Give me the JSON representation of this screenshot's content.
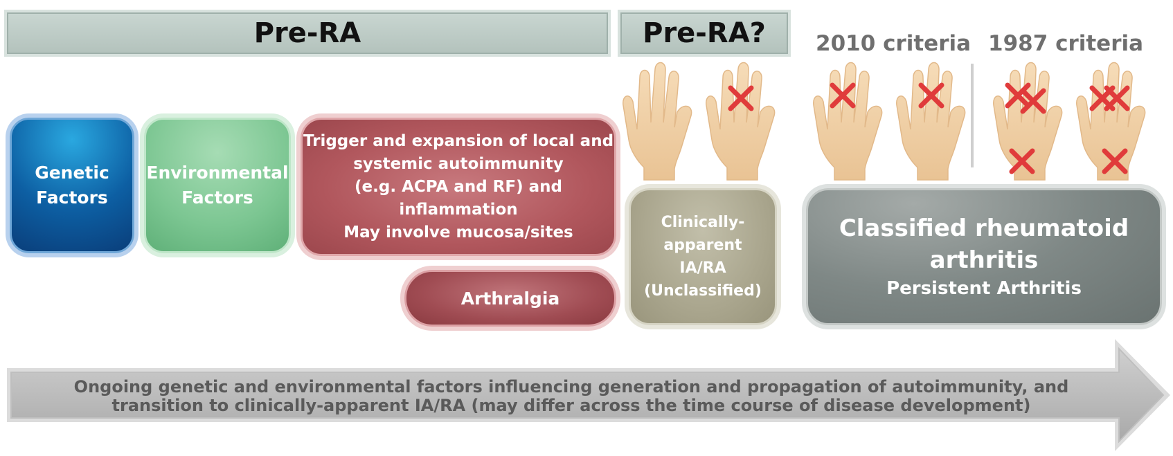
{
  "banners": {
    "pre_ra": "Pre-RA",
    "pre_ra_q": "Pre-RA?"
  },
  "criteria": {
    "c2010": "2010 criteria",
    "c1987": "1987 criteria"
  },
  "boxes": {
    "genetic": [
      "Genetic",
      "Factors"
    ],
    "environmental": [
      "Environmental",
      "Factors"
    ],
    "trigger": [
      "Trigger and expansion of local and",
      "systemic autoimmunity",
      "(e.g. ACPA and RF) and",
      "inflammation",
      "May involve mucosa/sites"
    ],
    "arthralgia": "Arthralgia",
    "clinically": [
      "Clinically-",
      "apparent",
      "IA/RA",
      "(Unclassified)"
    ],
    "classified": {
      "line1": "Classified rheumatoid",
      "line2": "arthritis",
      "line3": "Persistent Arthritis"
    }
  },
  "arrow": {
    "line1": "Ongoing genetic and environmental factors influencing generation and propagation of autoimmunity, and",
    "line2": "transition to clinically-apparent IA/RA (may differ across the time course of disease development)"
  },
  "colors": {
    "cross": "#e03b3b",
    "skin": "#f3d3ab",
    "arrow": "#b9b9b9"
  }
}
